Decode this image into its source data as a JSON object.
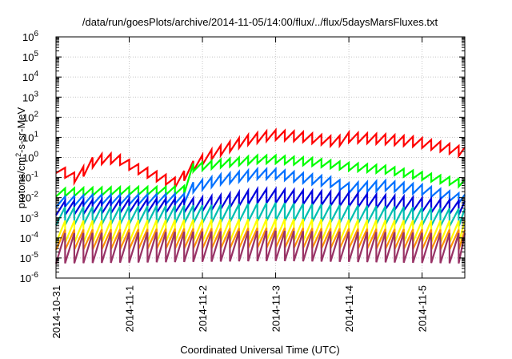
{
  "chart_data": {
    "type": "line",
    "title": "/data/run/goesPlots/archive/2014-11-05/14:00/flux/../flux/5daysMarsFluxes.txt",
    "xlabel": "Coordinated Universal Time (UTC)",
    "ylabel": "protons/cm2-s-sr-MeV",
    "y_scale": "log",
    "ylim": [
      1e-06,
      1000000.0
    ],
    "xlim": [
      "2014-10-31T00:00",
      "2014-11-05T14:00"
    ],
    "x_ticks": [
      "2014-10-31",
      "2014-11-1",
      "2014-11-2",
      "2014-11-3",
      "2014-11-4",
      "2014-11-5"
    ],
    "y_ticks": [
      {
        "base": "10",
        "exp": "-6"
      },
      {
        "base": "10",
        "exp": "-5"
      },
      {
        "base": "10",
        "exp": "-4"
      },
      {
        "base": "10",
        "exp": "-3"
      },
      {
        "base": "10",
        "exp": "-2"
      },
      {
        "base": "10",
        "exp": "-1"
      },
      {
        "base": "10",
        "exp": "0"
      },
      {
        "base": "10",
        "exp": "1"
      },
      {
        "base": "10",
        "exp": "2"
      },
      {
        "base": "10",
        "exp": "3"
      },
      {
        "base": "10",
        "exp": "4"
      },
      {
        "base": "10",
        "exp": "5"
      },
      {
        "base": "10",
        "exp": "6"
      }
    ],
    "grid": true,
    "sawtooth_period_hours": 3,
    "series": [
      {
        "color": "#ff0000",
        "points": [
          [
            "2014-10-31T00:00",
            0.3
          ],
          [
            "2014-10-31T06:00",
            0.1
          ],
          [
            "2014-10-31T09:00",
            0.2
          ],
          [
            "2014-10-31T13:00",
            0.8
          ],
          [
            "2014-10-31T20:00",
            0.9
          ],
          [
            "2014-11-01T02:00",
            0.3
          ],
          [
            "2014-11-01T10:00",
            0.1
          ],
          [
            "2014-11-01T16:00",
            0.05
          ],
          [
            "2014-11-01T20:00",
            0.3
          ],
          [
            "2014-11-02T02:00",
            1.2
          ],
          [
            "2014-11-02T08:00",
            3.0
          ],
          [
            "2014-11-02T14:00",
            7.0
          ],
          [
            "2014-11-02T20:00",
            11.0
          ],
          [
            "2014-11-03T00:00",
            13.0
          ],
          [
            "2014-11-03T08:00",
            11.0
          ],
          [
            "2014-11-03T14:00",
            8.0
          ],
          [
            "2014-11-03T20:00",
            6.0
          ],
          [
            "2014-11-04T00:00",
            10.0
          ],
          [
            "2014-11-04T12:00",
            8.0
          ],
          [
            "2014-11-04T22:00",
            6.0
          ],
          [
            "2014-11-05T06:00",
            3.5
          ],
          [
            "2014-11-05T14:00",
            1.8
          ]
        ],
        "amp": 0.25
      },
      {
        "color": "#00ff00",
        "points": [
          [
            "2014-10-31T00:00",
            0.018
          ],
          [
            "2014-10-31T12:00",
            0.02
          ],
          [
            "2014-11-01T00:00",
            0.022
          ],
          [
            "2014-11-01T12:00",
            0.022
          ],
          [
            "2014-11-01T19:00",
            0.025
          ],
          [
            "2014-11-01T20:00",
            0.3
          ],
          [
            "2014-11-02T06:00",
            0.5
          ],
          [
            "2014-11-02T18:00",
            0.8
          ],
          [
            "2014-11-03T00:00",
            0.8
          ],
          [
            "2014-11-03T12:00",
            0.6
          ],
          [
            "2014-11-04T00:00",
            0.35
          ],
          [
            "2014-11-04T12:00",
            0.25
          ],
          [
            "2014-11-05T00:00",
            0.12
          ],
          [
            "2014-11-05T14:00",
            0.05
          ]
        ],
        "amp": 0.2
      },
      {
        "color": "#0070ff",
        "points": [
          [
            "2014-10-31T00:00",
            0.006
          ],
          [
            "2014-10-31T12:00",
            0.008
          ],
          [
            "2014-11-01T00:00",
            0.008
          ],
          [
            "2014-11-01T19:00",
            0.009
          ],
          [
            "2014-11-01T20:00",
            0.03
          ],
          [
            "2014-11-02T06:00",
            0.08
          ],
          [
            "2014-11-02T18:00",
            0.15
          ],
          [
            "2014-11-03T00:00",
            0.15
          ],
          [
            "2014-11-03T18:00",
            0.06
          ],
          [
            "2014-11-04T00:00",
            0.03
          ],
          [
            "2014-11-04T12:00",
            0.04
          ],
          [
            "2014-11-05T00:00",
            0.025
          ],
          [
            "2014-11-05T14:00",
            0.008
          ]
        ],
        "amp": 0.25
      },
      {
        "color": "#0000dd",
        "points": [
          [
            "2014-10-31T00:00",
            0.003
          ],
          [
            "2014-11-01T00:00",
            0.004
          ],
          [
            "2014-11-01T20:00",
            0.004
          ],
          [
            "2014-11-02T06:00",
            0.006
          ],
          [
            "2014-11-02T18:00",
            0.012
          ],
          [
            "2014-11-03T00:00",
            0.012
          ],
          [
            "2014-11-04T00:00",
            0.008
          ],
          [
            "2014-11-04T12:00",
            0.006
          ],
          [
            "2014-11-05T14:00",
            0.003
          ]
        ],
        "amp": 0.35
      },
      {
        "color": "#00bfb0",
        "points": [
          [
            "2014-10-31T00:00",
            0.0012
          ],
          [
            "2014-11-02T00:00",
            0.0015
          ],
          [
            "2014-11-03T00:00",
            0.002
          ],
          [
            "2014-11-04T00:00",
            0.0015
          ],
          [
            "2014-11-05T14:00",
            0.001
          ]
        ],
        "amp": 0.45
      },
      {
        "color": "#ffff00",
        "points": [
          [
            "2014-10-31T00:00",
            0.0002
          ],
          [
            "2014-11-03T00:00",
            0.00025
          ],
          [
            "2014-11-05T14:00",
            0.0002
          ]
        ],
        "amp": 0.55
      },
      {
        "color": "#ff9500",
        "points": [
          [
            "2014-10-31T00:00",
            8e-05
          ],
          [
            "2014-11-03T00:00",
            0.0001
          ],
          [
            "2014-11-05T14:00",
            8e-05
          ]
        ],
        "amp": 0.5
      },
      {
        "color": "#993366",
        "points": [
          [
            "2014-10-31T00:00",
            3e-05
          ],
          [
            "2014-11-03T00:00",
            4e-05
          ],
          [
            "2014-11-05T14:00",
            3e-05
          ]
        ],
        "amp": 0.75
      }
    ]
  }
}
